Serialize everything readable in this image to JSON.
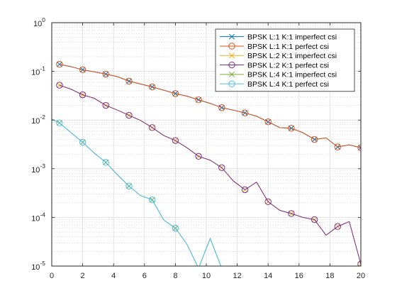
{
  "chart_data": {
    "type": "line",
    "title": "",
    "xlabel": "",
    "ylabel": "",
    "xlim": [
      0,
      20
    ],
    "ylim": [
      1e-05,
      1
    ],
    "yscale": "log",
    "grid": true,
    "minor_grid": true,
    "legend_position": "top-right",
    "x_ticks": [
      0,
      2,
      4,
      6,
      8,
      10,
      12,
      14,
      16,
      18,
      20
    ],
    "x_tick_labels": [
      "0",
      "2",
      "4",
      "6",
      "8",
      "10",
      "12",
      "14",
      "16",
      "18",
      "20"
    ],
    "y_ticks": [
      1e-05,
      0.0001,
      0.001,
      0.01,
      0.1,
      1
    ],
    "y_tick_exponents": [
      "-5",
      "-4",
      "-3",
      "-2",
      "-1",
      "0"
    ],
    "y_tick_base": "10",
    "series": [
      {
        "name": "BPSK L:1 K:1 imperfect csi",
        "color": "#0072bd",
        "marker": "x",
        "x": [
          0.5,
          1.25,
          2,
          2.75,
          3.5,
          4.25,
          5,
          5.75,
          6.5,
          7.25,
          8,
          8.75,
          9.5,
          10.25,
          11,
          11.75,
          12.5,
          13.25,
          14,
          14.75,
          15.5,
          16.25,
          17,
          17.75,
          18.5,
          19.25,
          20
        ],
        "y": [
          0.14,
          0.125,
          0.108,
          0.098,
          0.088,
          0.078,
          0.063,
          0.055,
          0.048,
          0.041,
          0.035,
          0.031,
          0.026,
          0.022,
          0.018,
          0.016,
          0.014,
          0.012,
          0.0092,
          0.007,
          0.0068,
          0.0055,
          0.004,
          0.0043,
          0.0028,
          0.0031,
          0.0027
        ],
        "marker_x": [
          0.5,
          2,
          3.5,
          5,
          6.5,
          8,
          9.5,
          11,
          12.5,
          14,
          15.5,
          17,
          18.5,
          20
        ]
      },
      {
        "name": "BPSK L:1 K:1 perfect csi",
        "color": "#d95319",
        "marker": "o",
        "x": [
          0.5,
          1.25,
          2,
          2.75,
          3.5,
          4.25,
          5,
          5.75,
          6.5,
          7.25,
          8,
          8.75,
          9.5,
          10.25,
          11,
          11.75,
          12.5,
          13.25,
          14,
          14.75,
          15.5,
          16.25,
          17,
          17.75,
          18.5,
          19.25,
          20
        ],
        "y": [
          0.14,
          0.125,
          0.108,
          0.098,
          0.088,
          0.078,
          0.063,
          0.055,
          0.048,
          0.041,
          0.035,
          0.031,
          0.026,
          0.022,
          0.018,
          0.016,
          0.014,
          0.012,
          0.0092,
          0.007,
          0.0068,
          0.0055,
          0.004,
          0.0043,
          0.0028,
          0.0031,
          0.0027
        ],
        "marker_x": [
          0.5,
          2,
          3.5,
          5,
          6.5,
          8,
          9.5,
          11,
          12.5,
          14,
          15.5,
          17,
          18.5,
          20
        ]
      },
      {
        "name": "BPSK L:2 K:1 imperfect csi",
        "color": "#edb120",
        "marker": "x",
        "x": [
          0.5,
          1.25,
          2,
          2.75,
          3.5,
          4.25,
          5,
          5.75,
          6.5,
          7.25,
          8,
          8.75,
          9.5,
          10.25,
          11,
          11.75,
          12.5,
          13.25,
          14,
          14.75,
          15.5,
          16.25,
          17,
          17.75,
          18.5,
          19.25,
          20
        ],
        "y": [
          0.052,
          0.043,
          0.033,
          0.028,
          0.02,
          0.016,
          0.0125,
          0.0098,
          0.007,
          0.0048,
          0.0038,
          0.0027,
          0.0018,
          0.0015,
          0.00105,
          0.00056,
          0.00037,
          0.00053,
          0.00021,
          0.00014,
          0.00012,
          0.0001,
          9e-05,
          4.3e-05,
          6.5e-05,
          8.2e-05,
          1.1e-05
        ],
        "marker_x": [
          0.5,
          2,
          3.5,
          5,
          6.5,
          8,
          9.5,
          11,
          12.5,
          14,
          15.5,
          17,
          18.5,
          20
        ]
      },
      {
        "name": "BPSK L:2 K:1 perfect csi",
        "color": "#7e2f8e",
        "marker": "o",
        "x": [
          0.5,
          1.25,
          2,
          2.75,
          3.5,
          4.25,
          5,
          5.75,
          6.5,
          7.25,
          8,
          8.75,
          9.5,
          10.25,
          11,
          11.75,
          12.5,
          13.25,
          14,
          14.75,
          15.5,
          16.25,
          17,
          17.75,
          18.5,
          19.25,
          20
        ],
        "y": [
          0.052,
          0.043,
          0.033,
          0.028,
          0.02,
          0.016,
          0.0125,
          0.0098,
          0.007,
          0.0048,
          0.0038,
          0.0027,
          0.0018,
          0.0015,
          0.00105,
          0.00056,
          0.00037,
          0.00053,
          0.00021,
          0.00014,
          0.00012,
          0.0001,
          9e-05,
          4.3e-05,
          6.5e-05,
          8.2e-05,
          1.1e-05
        ],
        "marker_x": [
          0.5,
          2,
          3.5,
          5,
          6.5,
          8,
          9.5,
          11,
          12.5,
          14,
          15.5,
          17,
          18.5,
          20
        ]
      },
      {
        "name": "BPSK L:4 K:1 imperfect csi",
        "color": "#77ac30",
        "marker": "x",
        "x": [
          0,
          0.5,
          1.25,
          2,
          2.75,
          3.5,
          4.25,
          5,
          5.75,
          6.5,
          7.25,
          8,
          8.75,
          9.5,
          10.25,
          11
        ],
        "y": [
          0.0105,
          0.0087,
          0.0055,
          0.0035,
          0.0021,
          0.00135,
          0.00075,
          0.00044,
          0.00028,
          0.00023,
          8.8e-05,
          6e-05,
          2.8e-05,
          9e-06,
          3.7e-05,
          9e-06
        ],
        "marker_x": [
          0.5,
          2,
          3.5,
          5,
          6.5,
          8
        ]
      },
      {
        "name": "BPSK L:4 K:1 perfect csi",
        "color": "#4dbeee",
        "marker": "o",
        "x": [
          0,
          0.5,
          1.25,
          2,
          2.75,
          3.5,
          4.25,
          5,
          5.75,
          6.5,
          7.25,
          8,
          8.75,
          9.5,
          10.25,
          11
        ],
        "y": [
          0.0105,
          0.0087,
          0.0055,
          0.0035,
          0.0021,
          0.00135,
          0.00075,
          0.00044,
          0.00028,
          0.00023,
          8.8e-05,
          6e-05,
          2.8e-05,
          9e-06,
          3.7e-05,
          9e-06
        ],
        "marker_x": [
          0.5,
          2,
          3.5,
          5,
          6.5,
          8
        ]
      }
    ]
  }
}
